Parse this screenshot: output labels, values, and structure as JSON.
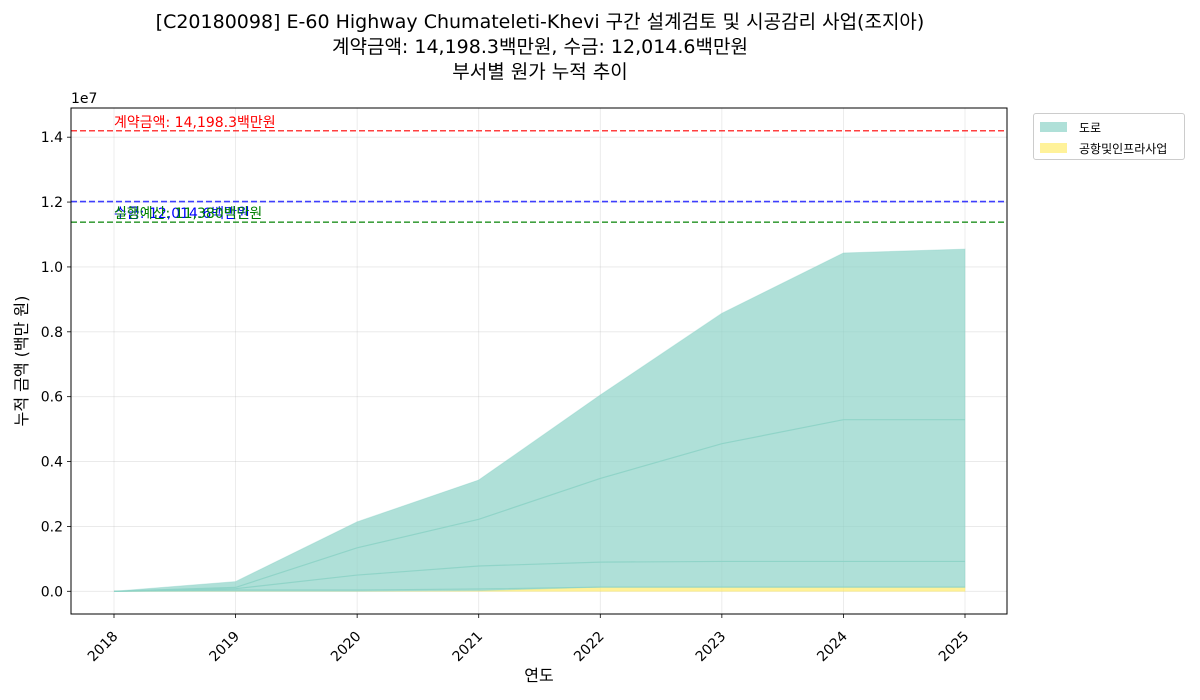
{
  "title": {
    "line1": "[C20180098] E-60 Highway Chumateleti-Khevi 구간 설계검토 및 시공감리 사업(조지아)",
    "line2": "계약금액: 14,198.3백만원, 수금: 12,014.6백만원",
    "line3": "부서별 원가 누적 추이"
  },
  "chart_data": {
    "type": "area",
    "stacked": true,
    "xlabel": "연도",
    "ylabel": "누적 금액 (백만 원)",
    "y_scale_label": "1e7",
    "x": [
      "2018",
      "2019",
      "2020",
      "2021",
      "2022",
      "2023",
      "2024",
      "2025"
    ],
    "ylim": [
      -700000,
      14900000
    ],
    "yticks": [
      0,
      2000000,
      4000000,
      6000000,
      8000000,
      10000000,
      12000000,
      14000000
    ],
    "ytick_labels": [
      "0.0",
      "0.2",
      "0.4",
      "0.6",
      "0.8",
      "1.0",
      "1.2",
      "1.4"
    ],
    "grid": true,
    "legend_position": "outside-top-right",
    "series": [
      {
        "name": "공항및인프라사업",
        "color": "#ffed6f",
        "values": [
          0,
          0,
          0,
          20000,
          130000,
          130000,
          130000,
          130000
        ]
      },
      {
        "name": "도로",
        "color": "#8dd3c7",
        "values": [
          0,
          300000,
          2140000,
          3410000,
          5920000,
          8440000,
          10300000,
          10420000
        ]
      }
    ],
    "internal_lines": [
      {
        "color": "#8dd3c7",
        "values": [
          0,
          40000,
          40000,
          70000,
          130000,
          130000,
          130000,
          130000
        ]
      },
      {
        "color": "#8dd3c7",
        "values": [
          0,
          80000,
          500000,
          780000,
          900000,
          920000,
          920000,
          920000
        ]
      },
      {
        "color": "#8dd3c7",
        "values": [
          0,
          120000,
          1340000,
          2220000,
          3480000,
          4550000,
          5290000,
          5290000
        ]
      }
    ],
    "reference_lines": [
      {
        "value": 14198300,
        "color": "#ff0000",
        "label": "계약금액: 14,198.3백만원"
      },
      {
        "value": 12014600,
        "color": "#0000ff",
        "label": "수금: 12,014.6백만원"
      },
      {
        "value": 11380000,
        "color": "#008000",
        "label": "실행예산: 11,380백만원"
      }
    ]
  }
}
